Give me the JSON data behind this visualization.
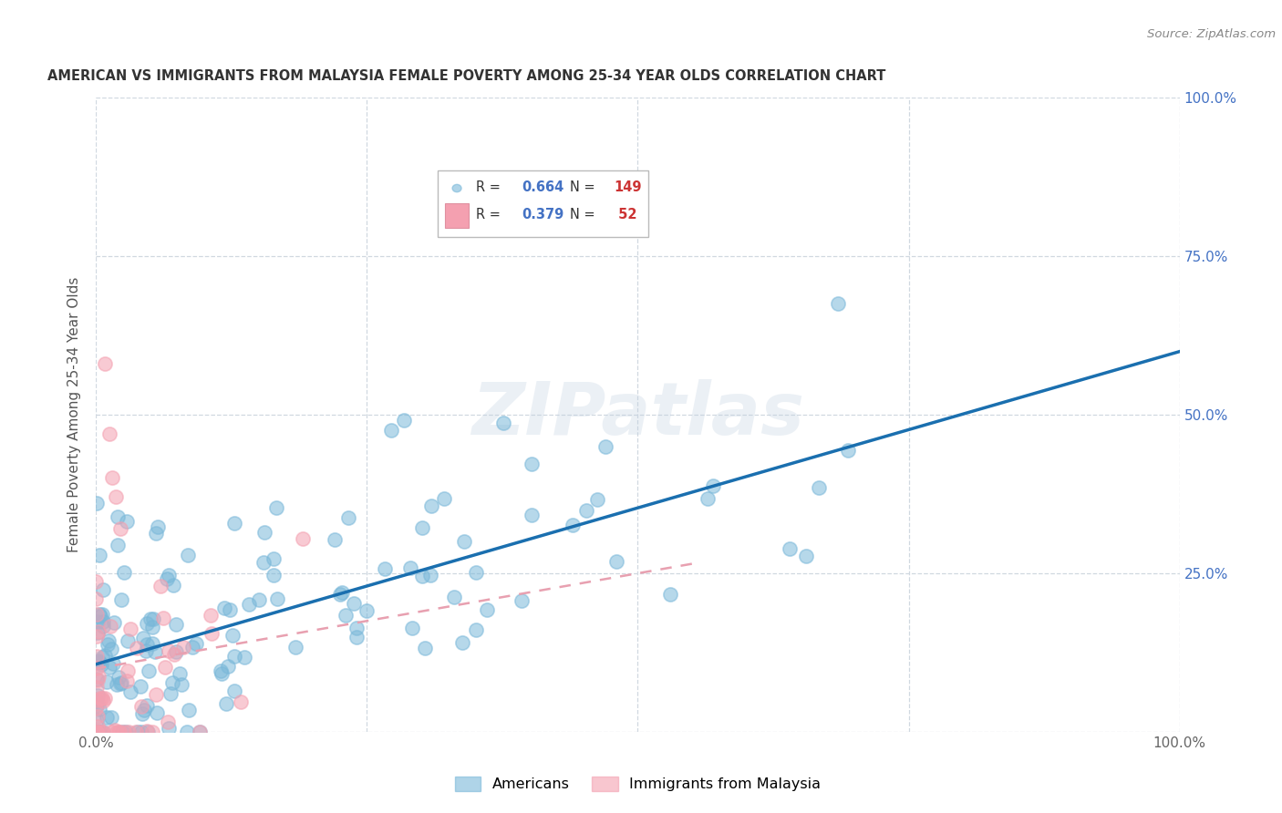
{
  "title": "AMERICAN VS IMMIGRANTS FROM MALAYSIA FEMALE POVERTY AMONG 25-34 YEAR OLDS CORRELATION CHART",
  "source": "Source: ZipAtlas.com",
  "ylabel": "Female Poverty Among 25-34 Year Olds",
  "watermark": "ZIPatlas",
  "r_american": 0.664,
  "n_american": 149,
  "r_malaysia": 0.379,
  "n_malaysia": 52,
  "color_american": "#7ab8d9",
  "color_malaysia": "#f4a0b0",
  "color_trendline_american": "#1a6faf",
  "color_trendline_malaysia": "#e8a0b0",
  "xlim": [
    0.0,
    1.0
  ],
  "ylim": [
    0.0,
    1.0
  ],
  "background_color": "#ffffff",
  "grid_color": "#d0d8e0",
  "legend_text_color_dark": "#333333",
  "legend_text_color_blue": "#4472c4",
  "legend_text_color_red": "#cc3333",
  "right_axis_color": "#4472c4",
  "title_color": "#333333",
  "source_color": "#888888",
  "ylabel_color": "#555555",
  "marker_size": 120,
  "marker_alpha": 0.55,
  "marker_lw": 1.2,
  "trendline_lw_american": 2.5,
  "trendline_lw_malaysia": 1.8
}
